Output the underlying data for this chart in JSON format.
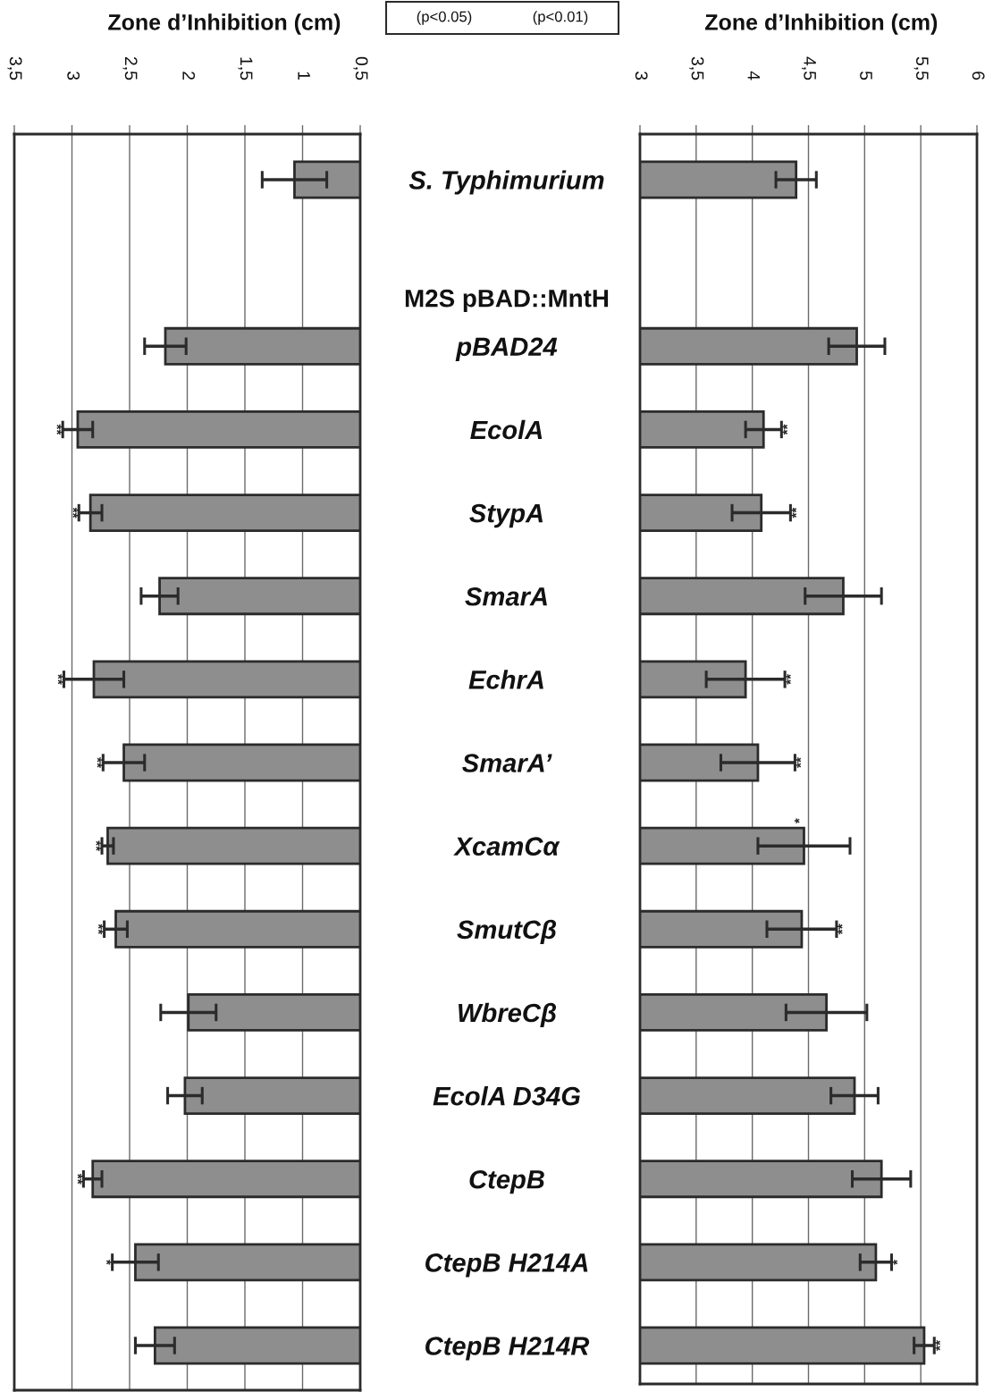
{
  "chart_data": [
    {
      "type": "bar",
      "orientation": "horizontal",
      "xlabel": "Zone d’Inhibition (cm)",
      "categories": [
        null,
        null,
        null,
        null,
        null,
        null,
        null,
        null,
        null,
        null,
        null,
        null,
        null,
        null,
        null
      ],
      "values": [
        1.07,
        null,
        2.19,
        2.95,
        2.84,
        2.24,
        2.81,
        2.55,
        2.69,
        2.62,
        1.99,
        2.02,
        2.82,
        2.45,
        2.28
      ],
      "errors": [
        0.28,
        null,
        0.18,
        0.13,
        0.1,
        0.16,
        0.26,
        0.18,
        0.05,
        0.1,
        0.24,
        0.15,
        0.08,
        0.2,
        0.17
      ],
      "value_labels": [
        null,
        null,
        null,
        "**",
        "**",
        null,
        "**",
        "**",
        "**",
        "**",
        null,
        null,
        "**",
        "*",
        null
      ],
      "color": "#8e8e8e",
      "xlim": [
        3.5,
        0.5
      ],
      "xticks": [
        {
          "value": 3.5,
          "label": "3,5"
        },
        3,
        {
          "value": 2.5,
          "label": "2,5"
        },
        2,
        {
          "value": 1.5,
          "label": "1,5"
        },
        1,
        {
          "value": 0.5,
          "label": "0,5"
        }
      ],
      "grid": "x"
    },
    {
      "type": "bar",
      "orientation": "horizontal",
      "xlabel": "Zone d’Inhibition (cm)",
      "categories": [
        "S. Typhimurium",
        null,
        "pBAD24",
        "EcolA",
        "StypA",
        "SmarA",
        "EchrA",
        "SmarA’",
        "XcamCα",
        "SmutCβ",
        "WbreCβ",
        "EcolA D34G",
        "CtepB",
        "CtepB H214A",
        "CtepB H214R"
      ],
      "values": [
        4.39,
        null,
        4.93,
        4.1,
        4.08,
        4.81,
        3.94,
        4.05,
        4.46,
        4.44,
        4.66,
        4.91,
        5.15,
        5.1,
        5.53
      ],
      "errors": [
        0.18,
        null,
        0.25,
        0.16,
        0.26,
        0.34,
        0.35,
        0.33,
        0.41,
        0.31,
        0.36,
        0.21,
        0.26,
        0.14,
        0.09
      ],
      "value_labels": [
        null,
        null,
        null,
        "**",
        "**",
        null,
        "**",
        "**",
        "*",
        "**",
        null,
        null,
        null,
        "*",
        "**"
      ],
      "color": "#8e8e8e",
      "xlim": [
        3,
        6
      ],
      "xticks": [
        3,
        {
          "value": 3.5,
          "label": "3,5"
        },
        4,
        {
          "value": 4.5,
          "label": "4,5"
        },
        5,
        {
          "value": 5.5,
          "label": "5,5"
        },
        6
      ],
      "grid": "x",
      "annotations": [
        "M2S pBAD::MntH",
        "(p<0.05)",
        "(p<0.01)"
      ]
    }
  ]
}
